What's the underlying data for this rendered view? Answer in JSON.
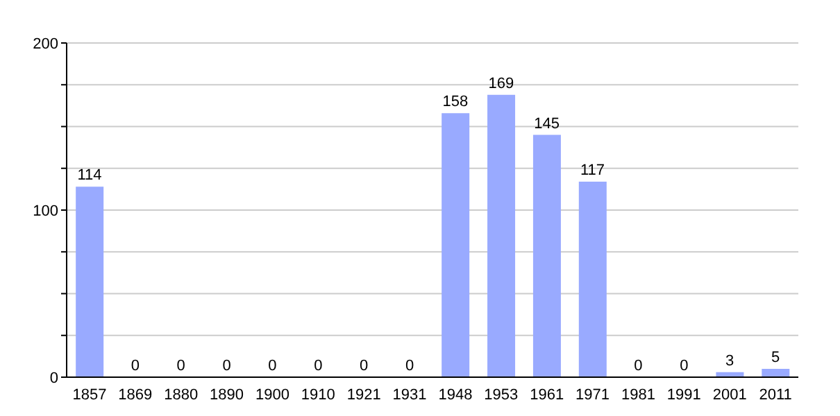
{
  "chart_data": {
    "type": "bar",
    "categories": [
      "1857",
      "1869",
      "1880",
      "1890",
      "1900",
      "1910",
      "1921",
      "1931",
      "1948",
      "1953",
      "1961",
      "1971",
      "1981",
      "1991",
      "2001",
      "2011"
    ],
    "values": [
      114,
      0,
      0,
      0,
      0,
      0,
      0,
      0,
      158,
      169,
      145,
      117,
      0,
      0,
      3,
      5
    ],
    "color": "#99aaff",
    "data_labels": true,
    "grid": "y",
    "legend": false,
    "ylim": [
      0,
      200
    ],
    "yticks": [
      0,
      {
        "value": 25,
        "label": null
      },
      {
        "value": 50,
        "label": null
      },
      {
        "value": 75,
        "label": null
      },
      100,
      {
        "value": 125,
        "label": null
      },
      {
        "value": 150,
        "label": null
      },
      {
        "value": 175,
        "label": null
      },
      200
    ]
  }
}
